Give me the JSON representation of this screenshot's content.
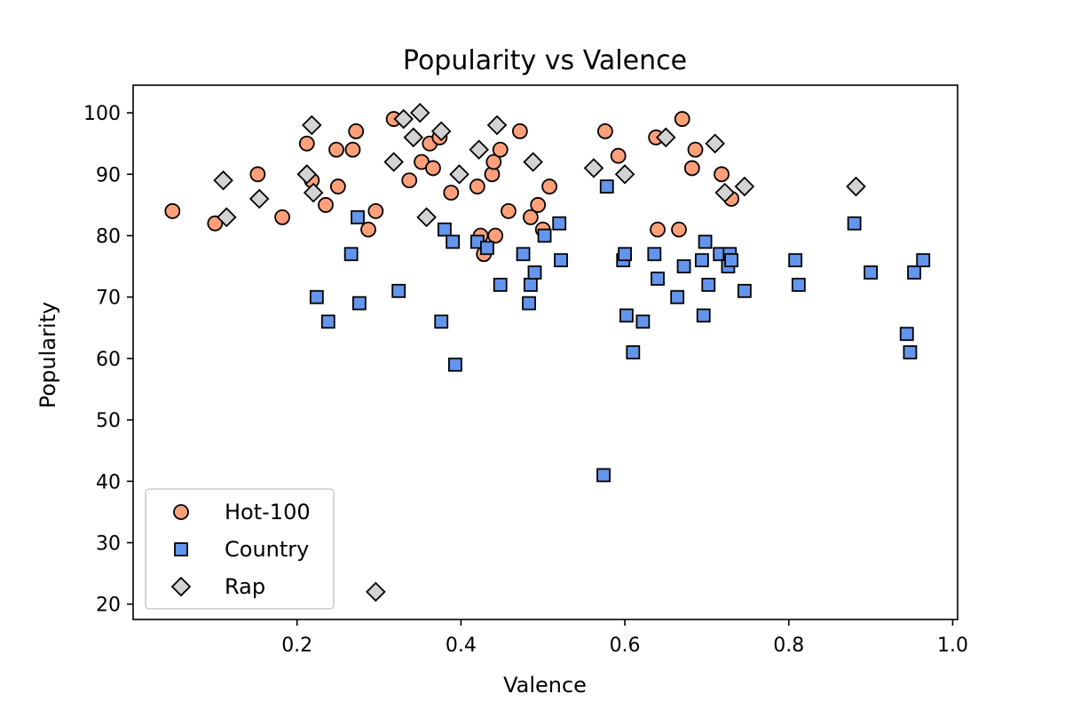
{
  "chart_data": {
    "type": "scatter",
    "title": "Popularity vs Valence",
    "xlabel": "Valence",
    "ylabel": "Popularity",
    "xlim": [
      0.0,
      1.006
    ],
    "ylim": [
      17.5,
      104.5
    ],
    "xticks": [
      0.2,
      0.4,
      0.6,
      0.8,
      1.0
    ],
    "xtick_labels": [
      "0.2",
      "0.4",
      "0.6",
      "0.8",
      "1.0"
    ],
    "yticks": [
      20,
      30,
      40,
      50,
      60,
      70,
      80,
      90,
      100
    ],
    "ytick_labels": [
      "20",
      "30",
      "40",
      "50",
      "60",
      "70",
      "80",
      "90",
      "100"
    ],
    "grid": false,
    "legend_position": "lower-left",
    "series": [
      {
        "name": "Hot-100",
        "marker": "circle",
        "color": "#ffa07a",
        "edge_color": "#000000",
        "points": [
          [
            0.048,
            84
          ],
          [
            0.1,
            82
          ],
          [
            0.152,
            90
          ],
          [
            0.182,
            83
          ],
          [
            0.212,
            95
          ],
          [
            0.218,
            89
          ],
          [
            0.235,
            85
          ],
          [
            0.248,
            94
          ],
          [
            0.25,
            88
          ],
          [
            0.268,
            94
          ],
          [
            0.272,
            97
          ],
          [
            0.287,
            81
          ],
          [
            0.296,
            84
          ],
          [
            0.318,
            99
          ],
          [
            0.337,
            89
          ],
          [
            0.352,
            92
          ],
          [
            0.362,
            95
          ],
          [
            0.366,
            91
          ],
          [
            0.374,
            96
          ],
          [
            0.388,
            87
          ],
          [
            0.42,
            88
          ],
          [
            0.424,
            80
          ],
          [
            0.428,
            77
          ],
          [
            0.438,
            90
          ],
          [
            0.44,
            92
          ],
          [
            0.442,
            80
          ],
          [
            0.448,
            94
          ],
          [
            0.458,
            84
          ],
          [
            0.472,
            97
          ],
          [
            0.485,
            83
          ],
          [
            0.494,
            85
          ],
          [
            0.5,
            81
          ],
          [
            0.508,
            88
          ],
          [
            0.576,
            97
          ],
          [
            0.592,
            93
          ],
          [
            0.638,
            96
          ],
          [
            0.64,
            81
          ],
          [
            0.666,
            81
          ],
          [
            0.67,
            99
          ],
          [
            0.682,
            91
          ],
          [
            0.686,
            94
          ],
          [
            0.718,
            90
          ],
          [
            0.73,
            86
          ]
        ]
      },
      {
        "name": "Country",
        "marker": "square",
        "color": "#6495ed",
        "edge_color": "#000000",
        "points": [
          [
            0.224,
            70
          ],
          [
            0.238,
            66
          ],
          [
            0.266,
            77
          ],
          [
            0.274,
            83
          ],
          [
            0.276,
            69
          ],
          [
            0.324,
            71
          ],
          [
            0.376,
            66
          ],
          [
            0.38,
            81
          ],
          [
            0.39,
            79
          ],
          [
            0.393,
            59
          ],
          [
            0.42,
            79
          ],
          [
            0.432,
            78
          ],
          [
            0.448,
            72
          ],
          [
            0.476,
            77
          ],
          [
            0.483,
            69
          ],
          [
            0.485,
            72
          ],
          [
            0.49,
            74
          ],
          [
            0.502,
            80
          ],
          [
            0.52,
            82
          ],
          [
            0.522,
            76
          ],
          [
            0.574,
            41
          ],
          [
            0.578,
            88
          ],
          [
            0.598,
            76
          ],
          [
            0.6,
            77
          ],
          [
            0.602,
            67
          ],
          [
            0.61,
            61
          ],
          [
            0.622,
            66
          ],
          [
            0.636,
            77
          ],
          [
            0.64,
            73
          ],
          [
            0.664,
            70
          ],
          [
            0.672,
            75
          ],
          [
            0.694,
            76
          ],
          [
            0.696,
            67
          ],
          [
            0.698,
            79
          ],
          [
            0.702,
            72
          ],
          [
            0.716,
            77
          ],
          [
            0.726,
            75
          ],
          [
            0.728,
            77
          ],
          [
            0.73,
            76
          ],
          [
            0.746,
            71
          ],
          [
            0.808,
            76
          ],
          [
            0.812,
            72
          ],
          [
            0.88,
            82
          ],
          [
            0.9,
            74
          ],
          [
            0.944,
            64
          ],
          [
            0.948,
            61
          ],
          [
            0.953,
            74
          ],
          [
            0.964,
            76
          ]
        ]
      },
      {
        "name": "Rap",
        "marker": "diamond",
        "color": "#d3d3d3",
        "edge_color": "#000000",
        "points": [
          [
            0.11,
            89
          ],
          [
            0.114,
            83
          ],
          [
            0.154,
            86
          ],
          [
            0.212,
            90
          ],
          [
            0.218,
            98
          ],
          [
            0.22,
            87
          ],
          [
            0.296,
            22
          ],
          [
            0.318,
            92
          ],
          [
            0.33,
            99
          ],
          [
            0.342,
            96
          ],
          [
            0.35,
            100
          ],
          [
            0.358,
            83
          ],
          [
            0.376,
            97
          ],
          [
            0.398,
            90
          ],
          [
            0.422,
            94
          ],
          [
            0.444,
            98
          ],
          [
            0.488,
            92
          ],
          [
            0.562,
            91
          ],
          [
            0.6,
            90
          ],
          [
            0.65,
            96
          ],
          [
            0.71,
            95
          ],
          [
            0.722,
            87
          ],
          [
            0.746,
            88
          ],
          [
            0.882,
            88
          ]
        ]
      }
    ]
  }
}
